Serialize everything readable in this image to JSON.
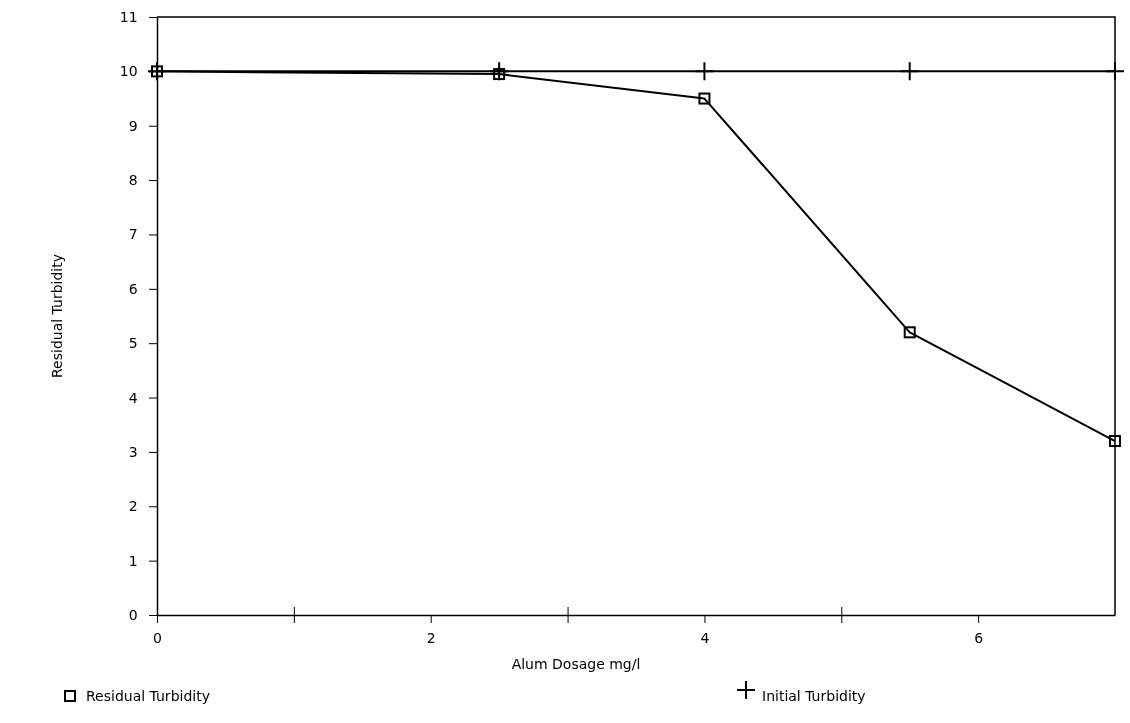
{
  "chart_data": {
    "type": "line",
    "xlabel": "Alum Dosage mg/l",
    "ylabel": "Residual Turbidity",
    "xlim": [
      0,
      7
    ],
    "ylim": [
      0,
      11
    ],
    "xticks": [
      0,
      {
        "value": 1,
        "label": null
      },
      2,
      {
        "value": 3,
        "label": null
      },
      4,
      {
        "value": 5,
        "label": null
      },
      6
    ],
    "yticks": [
      0,
      1,
      2,
      3,
      4,
      5,
      6,
      7,
      8,
      9,
      10,
      11
    ],
    "grid": false,
    "legend": "bottom",
    "line_style": "solid",
    "series": [
      {
        "name": "Residual Turbidity",
        "color": "#000000",
        "marker": "square",
        "x": [
          0,
          2.5,
          4,
          5.5,
          7
        ],
        "values": [
          10,
          9.95,
          9.5,
          5.2,
          3.2
        ]
      },
      {
        "name": "Initial Turbidity",
        "color": "#000000",
        "marker": "cross",
        "x": [
          0,
          2.5,
          4,
          5.5,
          7
        ],
        "values": [
          10,
          10,
          10,
          10,
          10
        ]
      }
    ]
  }
}
